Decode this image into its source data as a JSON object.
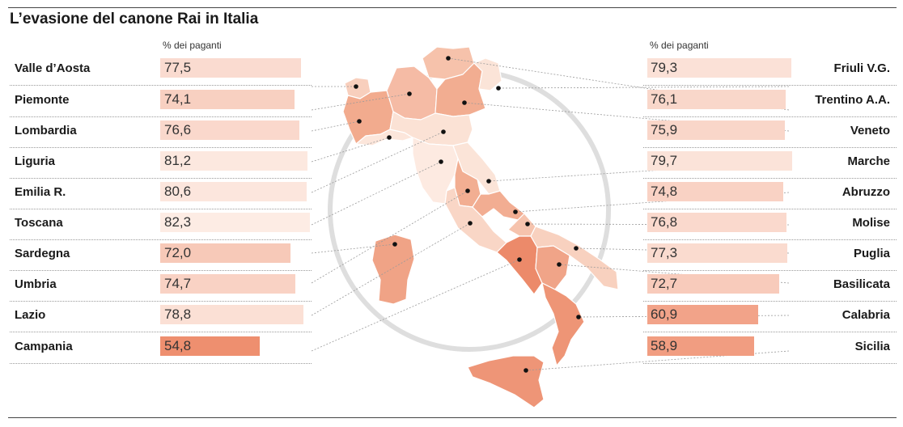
{
  "chart_data": {
    "type": "bar",
    "title": "L’evasione del canone Rai in Italia",
    "unit_label_left": "% dei paganti",
    "unit_label_right": "% dei paganti",
    "xlim": [
      0,
      100
    ],
    "left": [
      {
        "region": "Valle d’Aosta",
        "value": 77.5,
        "label": "77,5"
      },
      {
        "region": "Piemonte",
        "value": 74.1,
        "label": "74,1"
      },
      {
        "region": "Lombardia",
        "value": 76.6,
        "label": "76,6"
      },
      {
        "region": "Liguria",
        "value": 81.2,
        "label": "81,2"
      },
      {
        "region": "Emilia R.",
        "value": 80.6,
        "label": "80,6"
      },
      {
        "region": "Toscana",
        "value": 82.3,
        "label": "82,3"
      },
      {
        "region": "Sardegna",
        "value": 72.0,
        "label": "72,0"
      },
      {
        "region": "Umbria",
        "value": 74.7,
        "label": "74,7"
      },
      {
        "region": "Lazio",
        "value": 78.8,
        "label": "78,8"
      },
      {
        "region": "Campania",
        "value": 54.8,
        "label": "54,8"
      }
    ],
    "right": [
      {
        "region": "Friuli V.G.",
        "value": 79.3,
        "label": "79,3"
      },
      {
        "region": "Trentino A.A.",
        "value": 76.1,
        "label": "76,1"
      },
      {
        "region": "Veneto",
        "value": 75.9,
        "label": "75,9"
      },
      {
        "region": "Marche",
        "value": 79.7,
        "label": "79,7"
      },
      {
        "region": "Abruzzo",
        "value": 74.8,
        "label": "74,8"
      },
      {
        "region": "Molise",
        "value": 76.8,
        "label": "76,8"
      },
      {
        "region": "Puglia",
        "value": 77.3,
        "label": "77,3"
      },
      {
        "region": "Basilicata",
        "value": 72.7,
        "label": "72,7"
      },
      {
        "region": "Calabria",
        "value": 60.9,
        "label": "60,9"
      },
      {
        "region": "Sicilia",
        "value": 58.9,
        "label": "58,9"
      }
    ]
  }
}
